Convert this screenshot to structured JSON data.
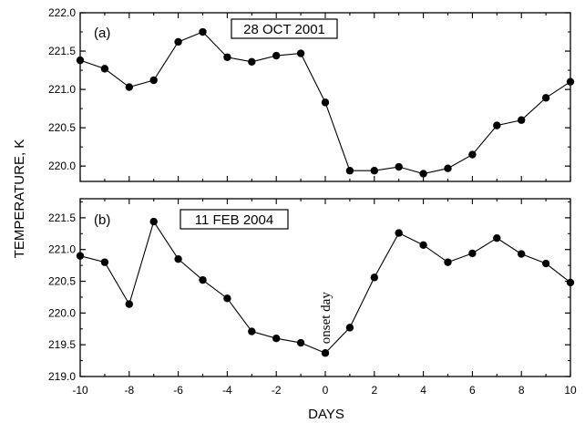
{
  "chart_data": {
    "type": "line",
    "xlabel": "DAYS",
    "ylabel": "TEMPERATURE, K",
    "xlim": [
      -10,
      10
    ],
    "xticks": [
      -10,
      -8,
      -6,
      -4,
      -2,
      0,
      2,
      4,
      6,
      8,
      10
    ],
    "grid": false,
    "panels": [
      {
        "tag": "(a)",
        "date_label": "28 OCT 2001",
        "ylim": [
          219.8,
          222.0
        ],
        "yticks": [
          "220.0",
          "220.5",
          "221.0",
          "221.5",
          "222.0"
        ],
        "ytick_values": [
          220.0,
          220.5,
          221.0,
          221.5,
          222.0
        ],
        "x": [
          -10,
          -9,
          -8,
          -7,
          -6,
          -5,
          -4,
          -3,
          -2,
          -1,
          0,
          1,
          2,
          3,
          4,
          5,
          6,
          7,
          8,
          9,
          10
        ],
        "values": [
          221.38,
          221.27,
          221.03,
          221.12,
          221.62,
          221.75,
          221.42,
          221.36,
          221.44,
          221.47,
          220.83,
          219.94,
          219.94,
          219.99,
          219.9,
          219.97,
          220.15,
          220.53,
          220.6,
          220.89,
          221.1
        ]
      },
      {
        "tag": "(b)",
        "date_label": "11 FEB 2004",
        "ylim": [
          219.0,
          221.8
        ],
        "yticks": [
          "219.0",
          "219.5",
          "220.0",
          "220.5",
          "221.0",
          "221.5"
        ],
        "ytick_values": [
          219.0,
          219.5,
          220.0,
          220.5,
          221.0,
          221.5
        ],
        "x": [
          -10,
          -9,
          -8,
          -7,
          -6,
          -5,
          -4,
          -3,
          -2,
          -1,
          0,
          1,
          2,
          3,
          4,
          5,
          6,
          7,
          8,
          9,
          10
        ],
        "values": [
          220.9,
          220.8,
          220.14,
          221.44,
          220.85,
          220.52,
          220.23,
          219.71,
          219.6,
          219.53,
          219.37,
          219.77,
          220.56,
          221.26,
          221.07,
          220.8,
          220.94,
          221.18,
          220.93,
          220.78,
          220.48
        ],
        "annotation": {
          "text": "onset day",
          "x": 0
        }
      }
    ]
  }
}
